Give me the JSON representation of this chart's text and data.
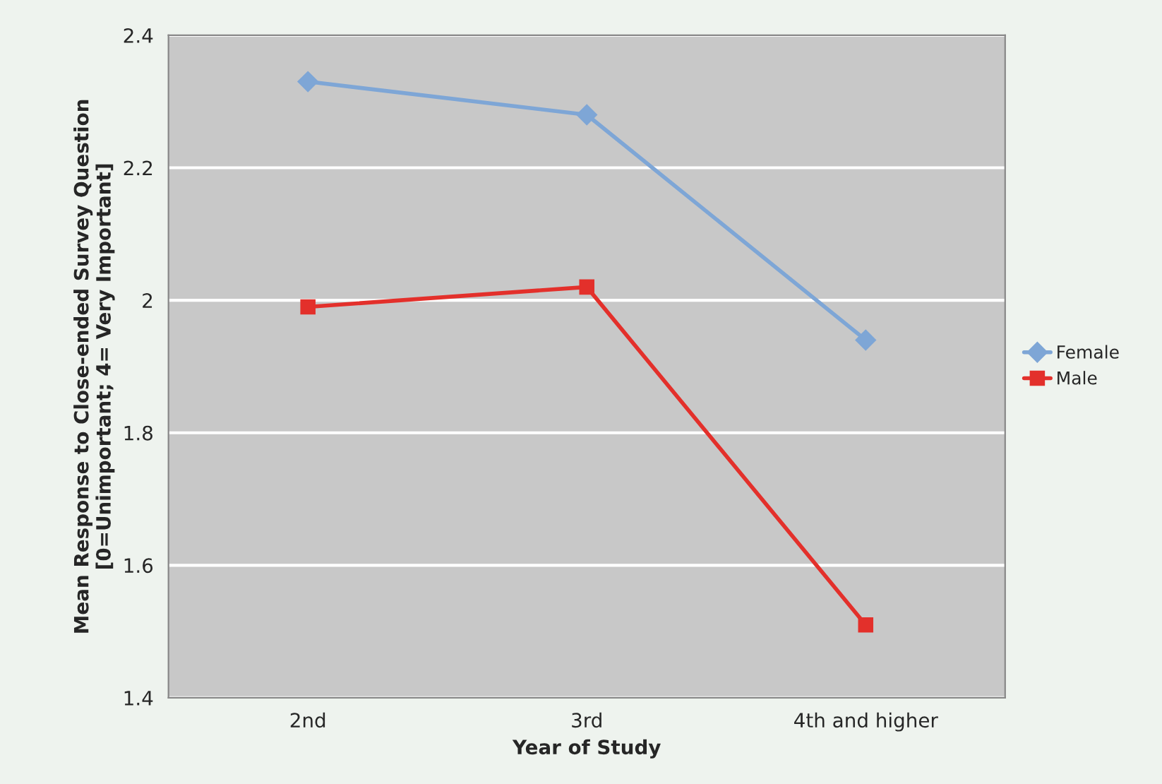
{
  "chart_data": {
    "type": "line",
    "xlabel": "Year of Study",
    "ylabel": "Mean Response to Close-ended Survey Question\n[0=Unimportant; 4= Very Important]",
    "categories": [
      "2nd",
      "3rd",
      "4th and higher"
    ],
    "series": [
      {
        "name": "Female",
        "color": "#7ea6d6",
        "marker": "diamond",
        "values": [
          2.33,
          2.28,
          1.94
        ]
      },
      {
        "name": "Male",
        "color": "#e3302b",
        "marker": "square",
        "values": [
          1.99,
          2.02,
          1.51
        ]
      }
    ],
    "ylim": [
      1.4,
      2.4
    ],
    "yticks": [
      1.4,
      1.6,
      1.8,
      2,
      2.2,
      2.4
    ],
    "grid": "y",
    "legend": "right",
    "line_style": "solid"
  }
}
